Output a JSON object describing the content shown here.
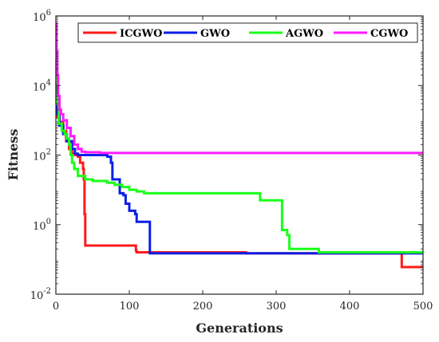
{
  "chart_data": {
    "type": "line",
    "title": "",
    "xlabel": "Generations",
    "ylabel": "Fitness",
    "xlim": [
      0,
      500
    ],
    "ylim": [
      0.01,
      1000000
    ],
    "yscale": "log",
    "grid": false,
    "legend_placement": "top",
    "x_ticks": [
      {
        "value": 0,
        "label": "0"
      },
      {
        "value": 100,
        "label": "100"
      },
      {
        "value": 200,
        "label": "200"
      },
      {
        "value": 300,
        "label": "300"
      },
      {
        "value": 400,
        "label": "400"
      },
      {
        "value": 500,
        "label": "500"
      }
    ],
    "y_ticks": [
      {
        "value": 0.01,
        "base": "10",
        "exp": "-2"
      },
      {
        "value": 1,
        "base": "10",
        "exp": "0"
      },
      {
        "value": 100,
        "base": "10",
        "exp": "2"
      },
      {
        "value": 10000,
        "base": "10",
        "exp": "4"
      },
      {
        "value": 1000000,
        "base": "10",
        "exp": "6"
      }
    ],
    "series": [
      {
        "name": "ICGWO",
        "color": "#ff1a1a",
        "points": [
          [
            0,
            60000
          ],
          [
            1,
            3000
          ],
          [
            2,
            1200
          ],
          [
            5,
            900
          ],
          [
            10,
            500
          ],
          [
            14,
            250
          ],
          [
            18,
            150
          ],
          [
            22,
            110
          ],
          [
            26,
            100
          ],
          [
            30,
            90
          ],
          [
            33,
            60
          ],
          [
            37,
            40
          ],
          [
            38,
            20
          ],
          [
            39,
            2
          ],
          [
            40,
            0.25
          ],
          [
            108,
            0.25
          ],
          [
            109,
            0.18
          ],
          [
            110,
            0.16
          ],
          [
            258,
            0.16
          ],
          [
            259,
            0.15
          ],
          [
            470,
            0.15
          ],
          [
            471,
            0.06
          ],
          [
            500,
            0.06
          ]
        ]
      },
      {
        "name": "GWO",
        "color": "#0a1fe6",
        "points": [
          [
            0,
            60000
          ],
          [
            1,
            4000
          ],
          [
            2,
            1500
          ],
          [
            5,
            700
          ],
          [
            10,
            400
          ],
          [
            15,
            250
          ],
          [
            22,
            150
          ],
          [
            26,
            110
          ],
          [
            30,
            100
          ],
          [
            70,
            90
          ],
          [
            75,
            60
          ],
          [
            77,
            20
          ],
          [
            85,
            20
          ],
          [
            87,
            8
          ],
          [
            92,
            7
          ],
          [
            95,
            4
          ],
          [
            100,
            2.5
          ],
          [
            108,
            2
          ],
          [
            110,
            1.2
          ],
          [
            125,
            1.2
          ],
          [
            128,
            0.15
          ],
          [
            500,
            0.15
          ]
        ]
      },
      {
        "name": "AGWO",
        "color": "#1aff1a",
        "points": [
          [
            0,
            60000
          ],
          [
            2,
            3000
          ],
          [
            4,
            800
          ],
          [
            8,
            500
          ],
          [
            12,
            400
          ],
          [
            15,
            300
          ],
          [
            18,
            200
          ],
          [
            20,
            100
          ],
          [
            22,
            60
          ],
          [
            25,
            40
          ],
          [
            30,
            25
          ],
          [
            40,
            20
          ],
          [
            50,
            18
          ],
          [
            60,
            18
          ],
          [
            70,
            16
          ],
          [
            80,
            14
          ],
          [
            90,
            12
          ],
          [
            100,
            10
          ],
          [
            110,
            9
          ],
          [
            120,
            8
          ],
          [
            276,
            8
          ],
          [
            278,
            5
          ],
          [
            305,
            5
          ],
          [
            308,
            0.7
          ],
          [
            315,
            0.5
          ],
          [
            318,
            0.2
          ],
          [
            355,
            0.2
          ],
          [
            358,
            0.16
          ],
          [
            500,
            0.16
          ]
        ]
      },
      {
        "name": "CGWO",
        "color": "#ff1aff",
        "points": [
          [
            0,
            600000
          ],
          [
            1,
            100000
          ],
          [
            2,
            20000
          ],
          [
            3,
            5000
          ],
          [
            5,
            2000
          ],
          [
            7,
            1500
          ],
          [
            10,
            1000
          ],
          [
            15,
            600
          ],
          [
            20,
            350
          ],
          [
            25,
            200
          ],
          [
            30,
            150
          ],
          [
            35,
            125
          ],
          [
            40,
            120
          ],
          [
            60,
            115
          ],
          [
            500,
            115
          ]
        ]
      }
    ]
  }
}
